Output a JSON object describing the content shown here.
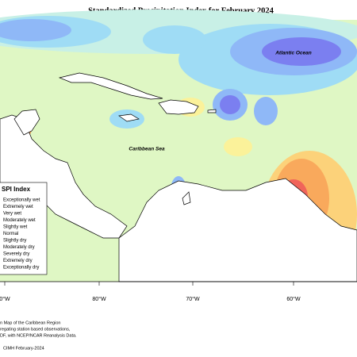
{
  "title": "Standardized Precipitation Index for February 2024",
  "map_labels": {
    "ocean": "Atlantic Ocean",
    "sea": "Caribbean Sea"
  },
  "legend": {
    "title": "SPI Index",
    "entries": [
      {
        "label": "Exceptionally wet",
        "color": "#6a5acd"
      },
      {
        "label": "Extremely wet",
        "color": "#7b7ff0"
      },
      {
        "label": "Very wet",
        "color": "#8fb8f7"
      },
      {
        "label": "Moderately wet",
        "color": "#9fdcf5"
      },
      {
        "label": "Slightly wet",
        "color": "#c8f0e6"
      },
      {
        "label": "Normal",
        "color": "#dff7c4"
      },
      {
        "label": "Slightly dry",
        "color": "#fbf29a"
      },
      {
        "label": "Moderately dry",
        "color": "#fcd27a"
      },
      {
        "label": "Severely dry",
        "color": "#f9a95c"
      },
      {
        "label": "Extremely dry",
        "color": "#f0645a"
      },
      {
        "label": "Exceptionally dry",
        "color": "#b3263a"
      }
    ]
  },
  "longitude_labels": [
    "0°W",
    "80°W",
    "70°W",
    "60°W"
  ],
  "footnotes": [
    "n Map of the Caribbean Region",
    "regating station based observations,",
    "DF, with NCEP/NCAR Reanalysis Data.",
    "CIMH February-2024"
  ]
}
